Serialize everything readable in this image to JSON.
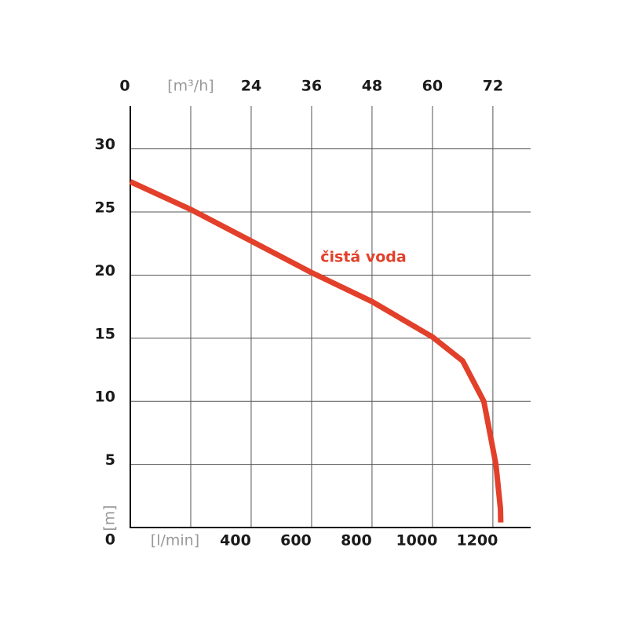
{
  "chart_data": {
    "type": "line",
    "x": [
      0,
      200,
      400,
      600,
      800,
      1000,
      1100,
      1170,
      1210,
      1225,
      1226
    ],
    "series": [
      {
        "name": "čistá voda",
        "color": "#e2402a",
        "values": [
          27.4,
          25.2,
          22.7,
          20.2,
          17.9,
          15.1,
          13.2,
          10,
          5,
          1.5,
          0.4
        ]
      }
    ],
    "xlim": [
      0,
      1325
    ],
    "ylim": [
      0,
      33.4
    ],
    "x2lim": [
      0,
      79.5
    ],
    "xticks": [
      {
        "value": 200,
        "label": "[l/min]"
      },
      400,
      600,
      800,
      1000,
      1200
    ],
    "x2ticks": [
      0,
      {
        "value": 12,
        "label": "[m³/h]"
      },
      24,
      36,
      48,
      60,
      72
    ],
    "yticks": [
      0,
      5,
      10,
      15,
      20,
      25,
      30
    ],
    "y_label": "[m]",
    "grid": true
  }
}
